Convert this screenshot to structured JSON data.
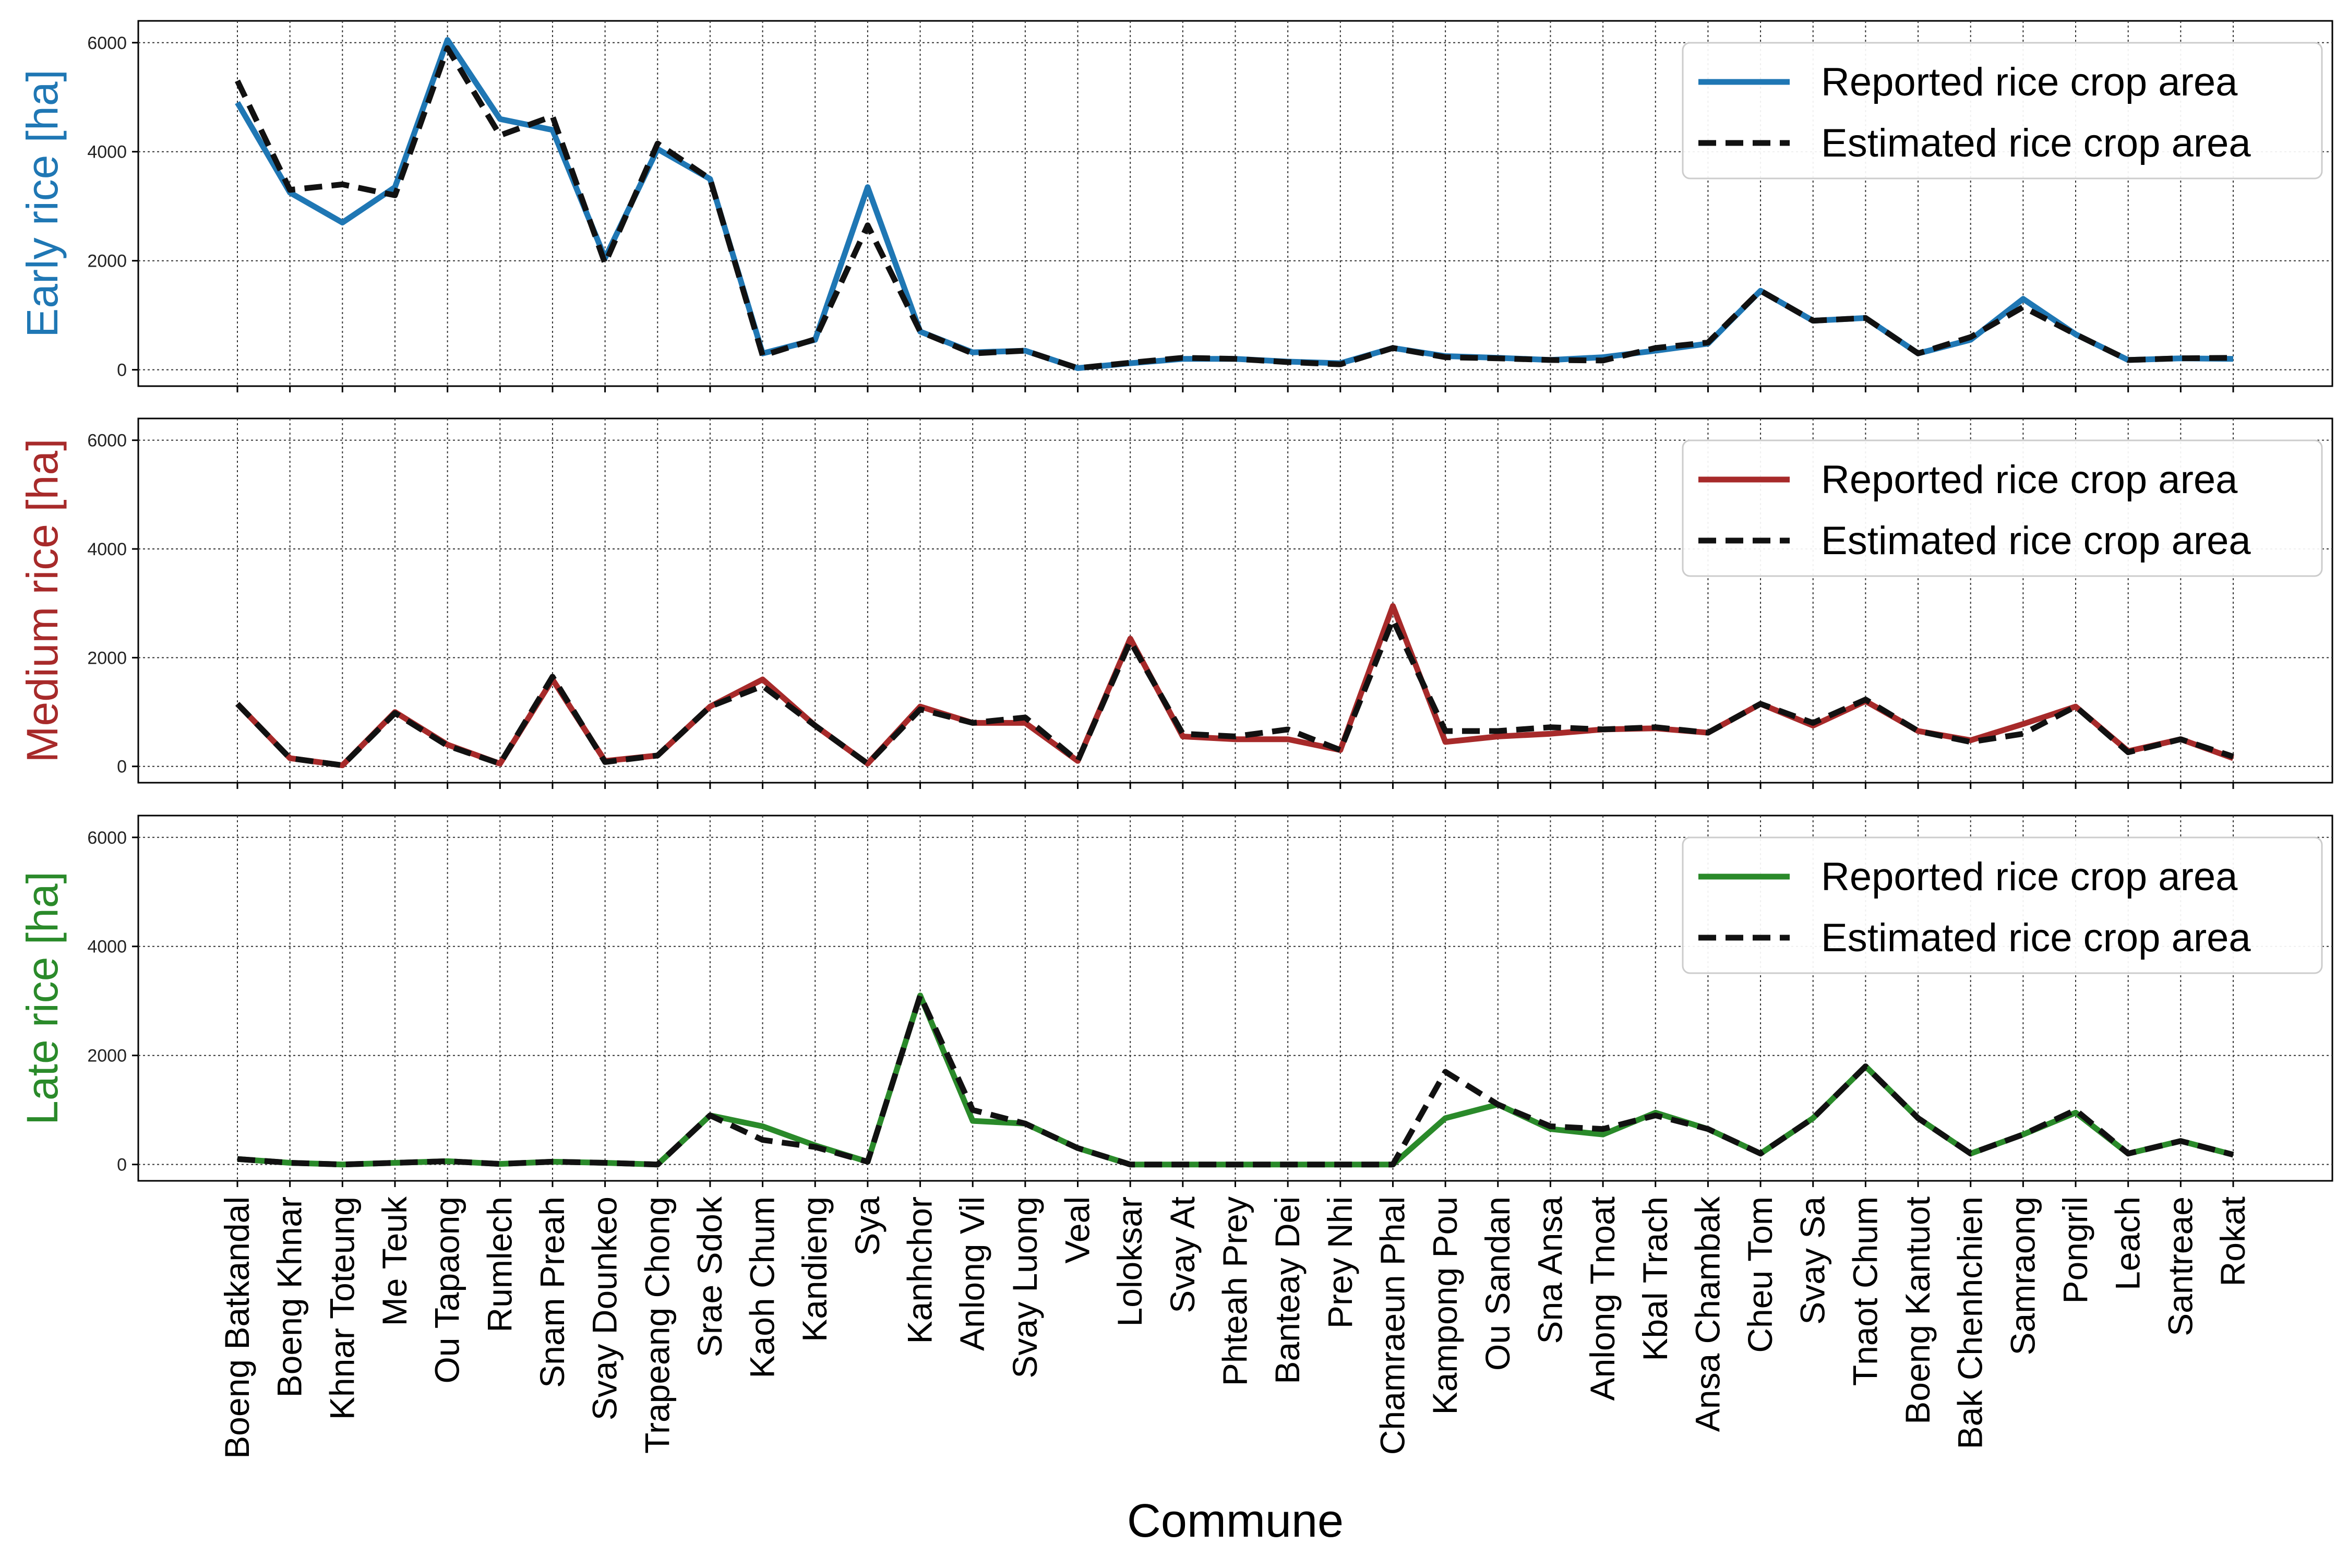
{
  "chart_data": {
    "type": "line",
    "xlabel": "Commune",
    "categories": [
      "Boeng Batkandal",
      "Boeng Khnar",
      "Khnar Toteung",
      "Me Teuk",
      "Ou Tapaong",
      "Rumlech",
      "Snam Preah",
      "Svay Dounkeo",
      "Trapeang Chong",
      "Srae Sdok",
      "Kaoh Chum",
      "Kandieng",
      "Sya",
      "Kanhchor",
      "Anlong Vil",
      "Svay Luong",
      "Veal",
      "Loloksar",
      "Svay At",
      "Phteah Prey",
      "Banteay Dei",
      "Prey Nhi",
      "Chamraeun Phal",
      "Kampong Pou",
      "Ou Sandan",
      "Sna Ansa",
      "Anlong Tnoat",
      "Kbal Trach",
      "Ansa Chambak",
      "Cheu Tom",
      "Svay Sa",
      "Tnaot Chum",
      "Boeng Kantuot",
      "Bak Chenhchien",
      "Samraong",
      "Pongril",
      "Leach",
      "Santreae",
      "Rokat"
    ],
    "grid": true,
    "legend_position": "top-right",
    "panels": [
      {
        "ylabel": "Early rice [ha]",
        "color": "#1f77b4",
        "ylim": [
          -300,
          6400
        ],
        "yticks": [
          0,
          2000,
          4000,
          6000
        ],
        "series": [
          {
            "name": "Reported rice crop area",
            "style": "solid",
            "values": [
              4900,
              3250,
              2700,
              3350,
              6050,
              4600,
              4400,
              2050,
              4050,
              3500,
              300,
              550,
              3350,
              700,
              320,
              350,
              30,
              120,
              200,
              200,
              150,
              120,
              400,
              250,
              220,
              180,
              230,
              350,
              480,
              1450,
              900,
              950,
              300,
              550,
              1300,
              650,
              180,
              210,
              200
            ]
          },
          {
            "name": "Estimated rice crop area",
            "style": "dashed",
            "values": [
              5300,
              3300,
              3400,
              3200,
              5900,
              4300,
              4650,
              1950,
              4150,
              3500,
              260,
              560,
              2650,
              700,
              300,
              350,
              30,
              130,
              220,
              200,
              140,
              100,
              400,
              230,
              210,
              180,
              170,
              400,
              500,
              1450,
              900,
              950,
              300,
              600,
              1150,
              650,
              180,
              210,
              220
            ]
          }
        ]
      },
      {
        "ylabel": "Medium rice [ha]",
        "color": "#a72a2a",
        "ylim": [
          -300,
          6400
        ],
        "yticks": [
          0,
          2000,
          4000,
          6000
        ],
        "series": [
          {
            "name": "Reported rice crop area",
            "style": "solid",
            "values": [
              1150,
              150,
              20,
              1000,
              400,
              50,
              1600,
              100,
              200,
              1100,
              1600,
              750,
              50,
              1100,
              800,
              800,
              100,
              2350,
              550,
              500,
              500,
              300,
              2950,
              450,
              550,
              600,
              680,
              700,
              620,
              1150,
              750,
              1200,
              650,
              480,
              780,
              1100,
              280,
              500,
              150
            ]
          },
          {
            "name": "Estimated rice crop area",
            "style": "dashed",
            "values": [
              1150,
              150,
              20,
              980,
              380,
              50,
              1650,
              80,
              200,
              1100,
              1480,
              750,
              50,
              1050,
              800,
              900,
              100,
              2300,
              600,
              550,
              680,
              300,
              2700,
              650,
              650,
              720,
              680,
              720,
              620,
              1150,
              800,
              1230,
              650,
              450,
              600,
              1100,
              260,
              500,
              180
            ]
          }
        ]
      },
      {
        "ylabel": "Late rice [ha]",
        "color": "#2a8a2a",
        "ylim": [
          -300,
          6400
        ],
        "yticks": [
          0,
          2000,
          4000,
          6000
        ],
        "series": [
          {
            "name": "Reported rice crop area",
            "style": "solid",
            "values": [
              100,
              30,
              0,
              30,
              60,
              10,
              50,
              30,
              0,
              900,
              700,
              350,
              50,
              3100,
              800,
              750,
              300,
              0,
              0,
              0,
              0,
              0,
              0,
              850,
              1100,
              650,
              550,
              950,
              650,
              200,
              850,
              1800,
              850,
              200,
              550,
              950,
              200,
              430,
              180
            ]
          },
          {
            "name": "Estimated rice crop area",
            "style": "dashed",
            "values": [
              100,
              30,
              0,
              30,
              60,
              10,
              50,
              30,
              0,
              900,
              450,
              320,
              50,
              3100,
              1000,
              750,
              300,
              0,
              0,
              0,
              0,
              0,
              0,
              1700,
              1100,
              700,
              650,
              900,
              650,
              200,
              850,
              1800,
              850,
              200,
              550,
              1000,
              200,
              430,
              180
            ]
          }
        ]
      }
    ]
  }
}
